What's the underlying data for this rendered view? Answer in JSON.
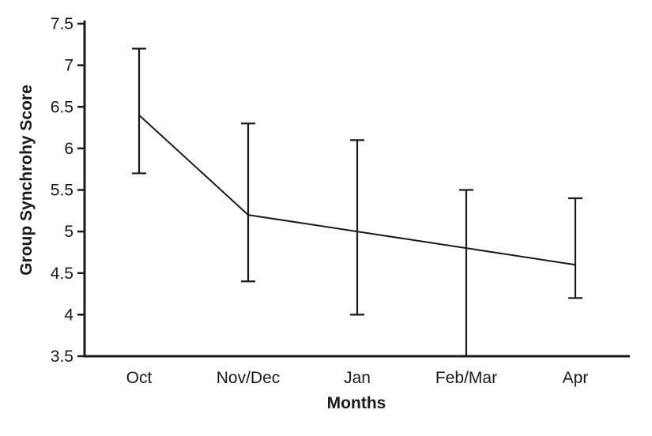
{
  "figure": {
    "background": "#ffffff",
    "line_color": "#1a1a1a",
    "text_color": "#1a1a1a"
  },
  "chart_data": {
    "type": "line",
    "title": "",
    "xlabel": "Months",
    "ylabel": "Group Synchrohy Score",
    "categories": [
      "Oct",
      "Nov/Dec",
      "Jan",
      "Feb/Mar",
      "Apr"
    ],
    "values": [
      6.4,
      5.2,
      5.0,
      4.8,
      4.6
    ],
    "error_bars": [
      {
        "low": 5.7,
        "high": 7.2
      },
      {
        "low": 4.4,
        "high": 6.3
      },
      {
        "low": 4.0,
        "high": 6.1
      },
      {
        "low": 3.5,
        "high": 5.5,
        "low_clipped_at_axis": true
      },
      {
        "low": 4.2,
        "high": 5.4
      }
    ],
    "ylim": [
      3.5,
      7.5
    ],
    "yticks": [
      3.5,
      4,
      4.5,
      5,
      5.5,
      6,
      6.5,
      7,
      7.5
    ],
    "grid": false,
    "legend": null,
    "marker": "none"
  }
}
